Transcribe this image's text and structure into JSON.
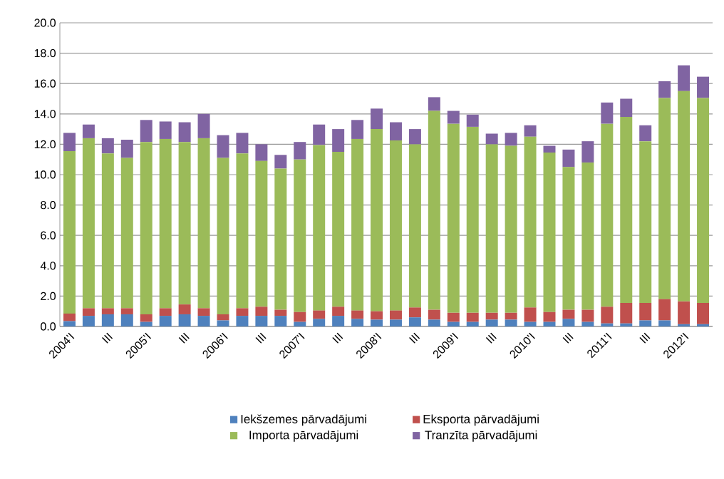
{
  "chart_data": {
    "type": "bar",
    "stacked": true,
    "grid": "y",
    "legend": "bottom",
    "categories": [
      "2004'I",
      null,
      "III",
      null,
      "2005'I",
      null,
      "III",
      null,
      "2006'I",
      null,
      "III",
      null,
      "2007'I",
      null,
      "III",
      null,
      "2008'I",
      null,
      "III",
      null,
      "2009'I",
      null,
      "III",
      null,
      "2010'I",
      null,
      "III",
      null,
      "2011'I",
      null,
      "III",
      null,
      "2012'I",
      null
    ],
    "ylim": [
      0,
      20
    ],
    "yticks": [
      {
        "value": 0,
        "label": "0.0"
      },
      {
        "value": 2,
        "label": "2.0"
      },
      {
        "value": 4,
        "label": "4.0"
      },
      {
        "value": 6,
        "label": "6.0"
      },
      {
        "value": 8,
        "label": "8.0"
      },
      {
        "value": 10,
        "label": "10.0"
      },
      {
        "value": 12,
        "label": "12.0"
      },
      {
        "value": 14,
        "label": "14.0"
      },
      {
        "value": 16,
        "label": "16.0"
      },
      {
        "value": 18,
        "label": "18.0"
      },
      {
        "value": 20,
        "label": "20.0"
      }
    ],
    "series": [
      {
        "name": "Iekšzemes pārvadājumi",
        "color": "#4f81bd",
        "values": [
          0.35,
          0.7,
          0.8,
          0.8,
          0.3,
          0.7,
          0.8,
          0.7,
          0.4,
          0.7,
          0.7,
          0.7,
          0.3,
          0.5,
          0.7,
          0.5,
          0.45,
          0.45,
          0.6,
          0.45,
          0.3,
          0.3,
          0.45,
          0.45,
          0.3,
          0.3,
          0.5,
          0.3,
          0.2,
          0.2,
          0.4,
          0.4,
          0.15,
          0.15
        ]
      },
      {
        "name": "Eksporta pārvadājumi",
        "color": "#c0504d",
        "values": [
          0.5,
          0.5,
          0.4,
          0.4,
          0.5,
          0.5,
          0.65,
          0.5,
          0.4,
          0.5,
          0.6,
          0.4,
          0.65,
          0.55,
          0.6,
          0.55,
          0.55,
          0.6,
          0.65,
          0.65,
          0.6,
          0.6,
          0.45,
          0.45,
          0.95,
          0.65,
          0.6,
          0.8,
          1.1,
          1.35,
          1.15,
          1.4,
          1.5,
          1.4
        ]
      },
      {
        "name": "Importa pārvadājumi",
        "color": "#9bbb59",
        "values": [
          10.7,
          11.2,
          10.2,
          9.9,
          11.35,
          11.15,
          10.7,
          11.2,
          10.3,
          10.2,
          9.6,
          9.3,
          10.05,
          10.9,
          10.2,
          11.3,
          12.0,
          11.2,
          10.75,
          13.1,
          12.45,
          12.25,
          11.1,
          11.0,
          11.25,
          10.5,
          9.4,
          9.7,
          12.05,
          12.25,
          10.65,
          13.25,
          13.85,
          13.5
        ]
      },
      {
        "name": "Tranzīta pārvadājumi",
        "color": "#8064a2",
        "values": [
          1.2,
          0.9,
          1.0,
          1.2,
          1.45,
          1.15,
          1.3,
          1.6,
          1.5,
          1.35,
          1.1,
          0.9,
          1.15,
          1.35,
          1.5,
          1.25,
          1.35,
          1.2,
          1.0,
          0.9,
          0.85,
          0.8,
          0.7,
          0.85,
          0.75,
          0.45,
          1.15,
          1.4,
          1.4,
          1.2,
          1.05,
          1.1,
          1.7,
          1.4
        ]
      }
    ]
  }
}
